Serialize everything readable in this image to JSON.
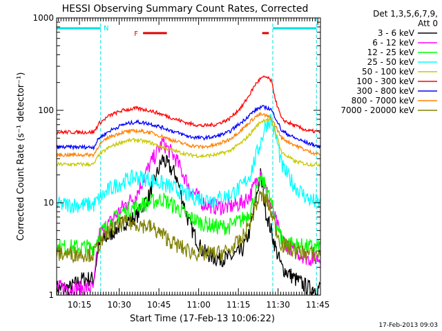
{
  "chart_data": {
    "type": "line",
    "title": "HESSI Observing Summary Count Rates, Corrected",
    "xlabel": "Start Time (17-Feb-13 10:06:22)",
    "ylabel": "Corrected Count Rate (s⁻¹ detector⁻¹)",
    "yscale": "log",
    "ylim": [
      1,
      1000
    ],
    "xlim_minutes": [
      "10:06:22",
      "11:46:00"
    ],
    "x_ticks": [
      "10:15",
      "10:30",
      "10:45",
      "11:00",
      "11:15",
      "11:30",
      "11:45"
    ],
    "y_ticks": [
      "1",
      "10",
      "100",
      "1000"
    ],
    "legend_header": [
      "Det 1,3,5,6,7,9,",
      "Att 0"
    ],
    "legend_position": "right",
    "timestamp": "17-Feb-2013 09:03",
    "annotations": [
      {
        "label": "N",
        "color": "#00e0e0",
        "meaning": "night",
        "start": "10:06:22",
        "end": "10:23:00"
      },
      {
        "label": "",
        "color": "#00e0e0",
        "meaning": "night",
        "start": "11:28:00",
        "end": "11:44:30"
      },
      {
        "label": "F",
        "color": "#e00000",
        "meaning": "flare",
        "start": "10:39:00",
        "end": "10:48:00"
      },
      {
        "label": "",
        "color": "#e00000",
        "meaning": "flare",
        "start": "11:24:00",
        "end": "11:26:30"
      }
    ],
    "vlines": [
      "10:23:00",
      "11:28:00",
      "11:44:30"
    ],
    "x_minutes": [
      0,
      5,
      10,
      14,
      16,
      20,
      25,
      30,
      35,
      40,
      45,
      50,
      55,
      60,
      65,
      70,
      73,
      75,
      77,
      79,
      81,
      83,
      85,
      90,
      95,
      100
    ],
    "series": [
      {
        "name": "3 - 6 keV",
        "color": "#000000",
        "values": [
          1.2,
          1.2,
          1.5,
          1.5,
          3.5,
          4.5,
          6,
          7,
          12,
          30,
          20,
          6,
          3,
          2.5,
          2.5,
          3,
          5,
          10,
          20,
          8,
          5,
          3,
          2,
          1.5,
          1.2,
          1.2
        ]
      },
      {
        "name": "6 - 12 keV",
        "color": "#ff00ff",
        "values": [
          1.2,
          1.2,
          1.2,
          1.2,
          4.5,
          6,
          9,
          12,
          25,
          45,
          30,
          15,
          10,
          9,
          9,
          10,
          12,
          16,
          22,
          14,
          9,
          6,
          4,
          3,
          2.5,
          2.5
        ]
      },
      {
        "name": "12 - 25 keV",
        "color": "#00ff00",
        "values": [
          3.3,
          3.3,
          3.3,
          3.3,
          4.5,
          6,
          8,
          9,
          10,
          11,
          9,
          7,
          6,
          5.5,
          5.5,
          6.5,
          8,
          12,
          18,
          15,
          10,
          6,
          4,
          3.5,
          3.3,
          3.3
        ]
      },
      {
        "name": "25 - 50 keV",
        "color": "#00ffff",
        "values": [
          9.5,
          9.5,
          9.5,
          9.5,
          11,
          14,
          17,
          19,
          18,
          16,
          14,
          12,
          11,
          11,
          12,
          15,
          20,
          30,
          45,
          70,
          80,
          50,
          25,
          15,
          11,
          9.5
        ]
      },
      {
        "name": "50 - 100 keV",
        "color": "#c8c800",
        "values": [
          26,
          26,
          26,
          26,
          33,
          40,
          46,
          48,
          45,
          40,
          36,
          33,
          32,
          33,
          36,
          45,
          55,
          65,
          75,
          80,
          78,
          55,
          35,
          28,
          26,
          26
        ]
      },
      {
        "name": "100 - 300 keV",
        "color": "#ff0000",
        "values": [
          58,
          58,
          58,
          58,
          72,
          88,
          100,
          105,
          100,
          90,
          80,
          72,
          68,
          70,
          80,
          110,
          150,
          190,
          220,
          230,
          210,
          120,
          80,
          68,
          60,
          58
        ]
      },
      {
        "name": "300 - 800 keV",
        "color": "#0000ff",
        "values": [
          40,
          40,
          40,
          40,
          50,
          60,
          70,
          75,
          72,
          65,
          58,
          52,
          50,
          52,
          58,
          75,
          90,
          100,
          108,
          108,
          102,
          80,
          60,
          50,
          44,
          40
        ]
      },
      {
        "name": "800 - 7000 keV",
        "color": "#ff8000",
        "values": [
          33,
          33,
          33,
          33,
          42,
          52,
          58,
          60,
          58,
          52,
          46,
          42,
          40,
          42,
          48,
          62,
          75,
          85,
          90,
          88,
          82,
          65,
          50,
          42,
          36,
          33
        ]
      },
      {
        "name": "7000 - 20000 keV",
        "color": "#808000",
        "values": [
          2.8,
          2.8,
          2.8,
          2.8,
          3.5,
          5,
          6,
          6,
          5.5,
          4.5,
          3.5,
          3,
          2.8,
          2.8,
          3,
          4,
          6,
          9,
          12,
          11,
          8,
          5,
          3.5,
          3,
          2.8,
          2.8
        ]
      }
    ]
  }
}
